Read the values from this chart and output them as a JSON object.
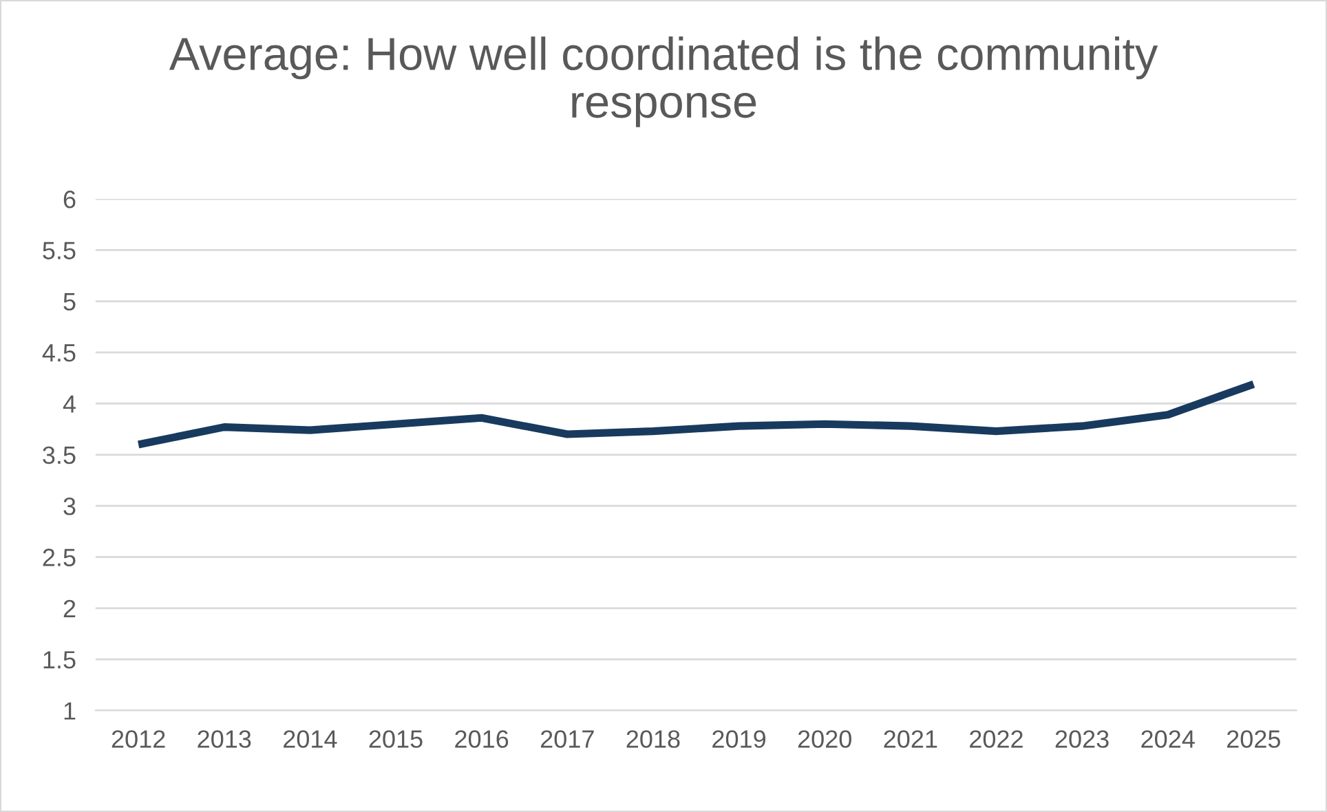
{
  "chart_data": {
    "type": "line",
    "title": "Average: How well coordinated is the community response",
    "categories": [
      "2012",
      "2013",
      "2014",
      "2015",
      "2016",
      "2017",
      "2018",
      "2019",
      "2020",
      "2021",
      "2022",
      "2023",
      "2024",
      "2025"
    ],
    "series": [
      {
        "color": "#183a5e",
        "values": [
          3.6,
          3.77,
          3.74,
          3.8,
          3.86,
          3.7,
          3.73,
          3.78,
          3.8,
          3.78,
          3.73,
          3.78,
          3.89,
          4.19
        ]
      }
    ],
    "ylim": [
      1,
      6
    ],
    "yticks": [
      1,
      1.5,
      2,
      2.5,
      3,
      3.5,
      4,
      4.5,
      5,
      5.5,
      6
    ],
    "grid": "y",
    "line_style": "solid",
    "marker": "none"
  }
}
